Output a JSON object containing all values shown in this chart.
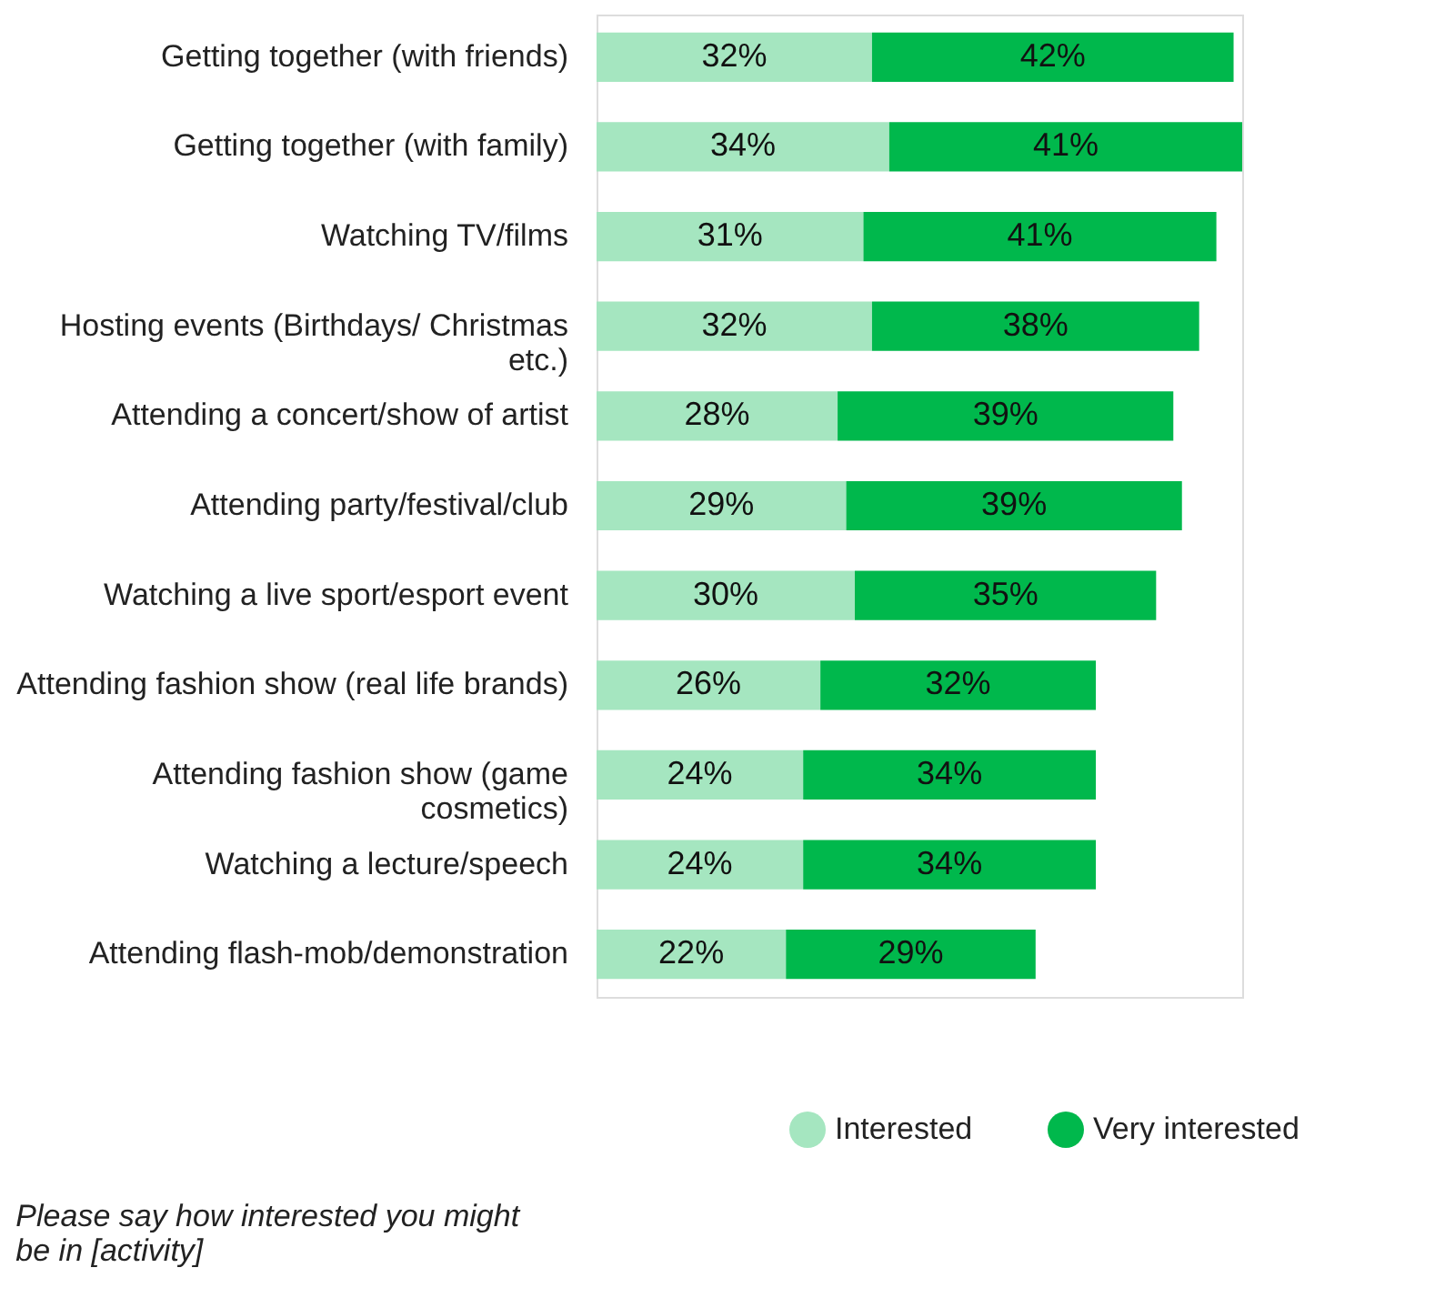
{
  "chart_data": {
    "type": "bar",
    "orientation": "horizontal",
    "stacked": true,
    "categories": [
      "Getting together (with friends)",
      "Getting together (with family)",
      "Watching TV/films",
      "Hosting  events (Birthdays/ Christmas\netc.)",
      "Attending a concert/show of artist",
      "Attending party/festival/club",
      "Watching a live sport/esport event",
      "Attending fashion show (real life brands)",
      "Attending fashion show (game\ncosmetics)",
      "Watching a lecture/speech",
      "Attending  flash-mob/demonstration"
    ],
    "series": [
      {
        "name": "Interested",
        "color": "#a5e6c0",
        "values": [
          32,
          34,
          31,
          32,
          28,
          29,
          30,
          26,
          24,
          24,
          22
        ],
        "value_labels": [
          "32%",
          "34%",
          "31%",
          "32%",
          "28%",
          "29%",
          "30%",
          "26%",
          "24%",
          "24%",
          "22%"
        ]
      },
      {
        "name": "Very interested",
        "color": "#00b84c",
        "values": [
          42,
          41,
          41,
          38,
          39,
          39,
          35,
          32,
          34,
          34,
          29
        ],
        "value_labels": [
          "42%",
          "41%",
          "41%",
          "38%",
          "39%",
          "39%",
          "35%",
          "32%",
          "34%",
          "34%",
          "29%"
        ]
      }
    ],
    "legend": "bottom right",
    "annotations": [
      "Please say how interested you might be in [activity]"
    ]
  }
}
